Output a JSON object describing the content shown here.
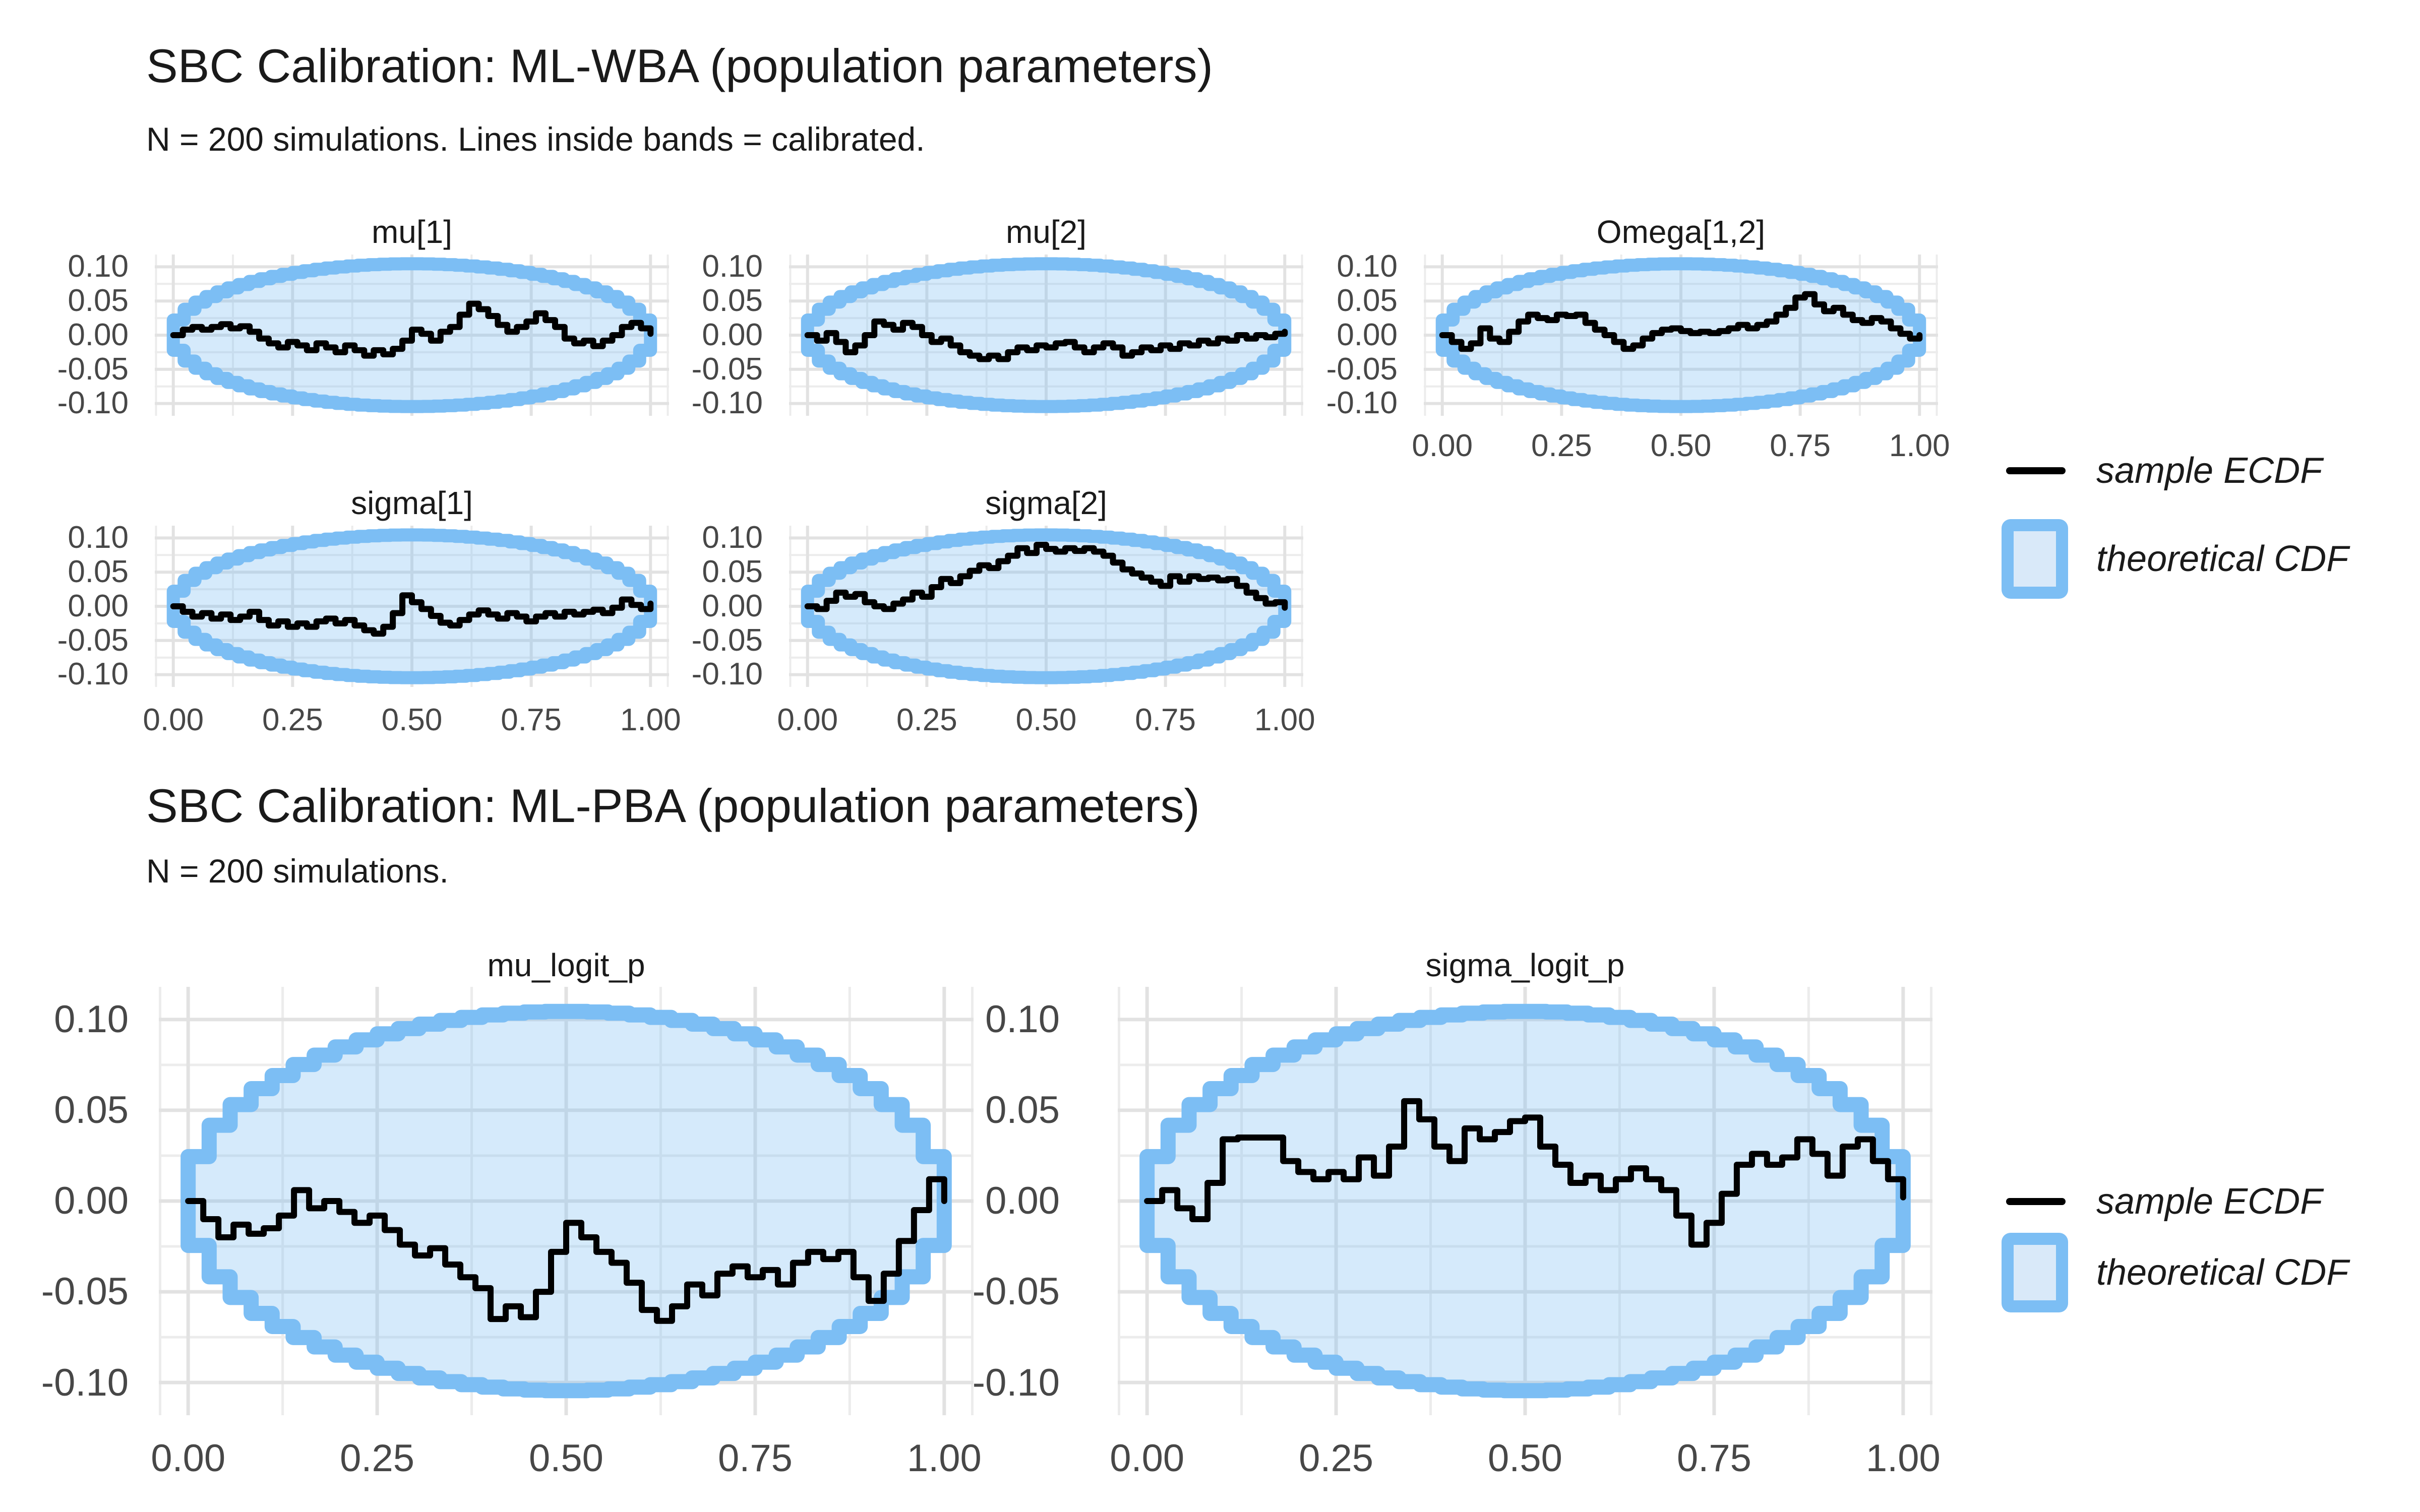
{
  "page": {
    "background": "#FFFFFF",
    "kind": "SBC calibration ECDF-difference plots"
  },
  "figures": [
    {
      "title": "SBC Calibration: ML-WBA (population parameters)",
      "subtitle": "N = 200 simulations. Lines inside bands = calibrated.",
      "n_simulations": 200
    },
    {
      "title": "SBC Calibration: ML-PBA (population parameters)",
      "subtitle": "N = 200 simulations.",
      "n_simulations": 200
    }
  ],
  "legend": {
    "line_label": "sample ECDF",
    "band_label": "theoretical CDF"
  },
  "colors": {
    "ecdf_line": "#000000",
    "band_border": "#7CBEF4",
    "band_fill": "rgba(124,190,244,0.32)",
    "grid_major": "#E2E2E2",
    "grid_minor": "#ECECEC",
    "tick_text": "#474747",
    "title_text": "#1A1A1A"
  },
  "axes": {
    "x_tick_labels": [
      "0.00",
      "0.25",
      "0.50",
      "0.75",
      "1.00"
    ],
    "x_tick_values": [
      0,
      0.25,
      0.5,
      0.75,
      1
    ],
    "x_minor_values": [
      0.125,
      0.375,
      0.625,
      0.875
    ],
    "y_tick_labels": [
      "0.10",
      "0.05",
      "0.00",
      "-0.05",
      "-0.10"
    ],
    "y_tick_values": [
      0.1,
      0.05,
      0.0,
      -0.05,
      -0.1
    ],
    "y_minor_values": [
      0.075,
      0.025,
      -0.025,
      -0.075
    ],
    "x_range": [
      0,
      1
    ],
    "y_range": [
      -0.118,
      0.118
    ],
    "grid": true
  },
  "chart_data": {
    "type": "line",
    "subtype": "sbc-ecdf-difference",
    "description": "Sample ECDF minus uniform CDF (stepped black line) per parameter, with stepped elliptical 95% theoretical CDF band centered at 0.",
    "x_sample_step": 0.02,
    "band": {
      "max_half_height": 0.1045,
      "shape": "stepped ellipse, y = ±2·0.1045·sqrt(t(1−t)) over t in [0,1]"
    },
    "panels": [
      {
        "id": "mu1",
        "title": "mu[1]",
        "figure": 0,
        "x_axis_labels": false,
        "ecdf_diff": [
          0.0,
          0.008,
          0.012,
          0.008,
          0.012,
          0.016,
          0.01,
          0.013,
          0.005,
          -0.005,
          -0.012,
          -0.018,
          -0.01,
          -0.015,
          -0.022,
          -0.012,
          -0.018,
          -0.025,
          -0.015,
          -0.022,
          -0.03,
          -0.022,
          -0.028,
          -0.02,
          -0.008,
          0.008,
          0.002,
          -0.008,
          0.005,
          0.012,
          0.03,
          0.046,
          0.038,
          0.028,
          0.015,
          0.005,
          0.012,
          0.02,
          0.032,
          0.022,
          0.012,
          -0.005,
          -0.012,
          -0.008,
          -0.016,
          -0.008,
          0.0,
          0.012,
          0.018,
          0.01,
          0.002
        ]
      },
      {
        "id": "mu2",
        "title": "mu[2]",
        "figure": 0,
        "x_axis_labels": false,
        "ecdf_diff": [
          0.0,
          -0.008,
          0.003,
          -0.01,
          -0.025,
          -0.015,
          0.0,
          0.02,
          0.015,
          0.008,
          0.018,
          0.012,
          0.0,
          -0.01,
          -0.005,
          -0.015,
          -0.025,
          -0.03,
          -0.035,
          -0.03,
          -0.035,
          -0.025,
          -0.018,
          -0.022,
          -0.015,
          -0.018,
          -0.012,
          -0.01,
          -0.018,
          -0.025,
          -0.018,
          -0.012,
          -0.018,
          -0.03,
          -0.025,
          -0.018,
          -0.022,
          -0.015,
          -0.02,
          -0.012,
          -0.015,
          -0.008,
          -0.012,
          -0.005,
          -0.008,
          0.0,
          -0.005,
          0.0,
          -0.003,
          0.002,
          0.005
        ]
      },
      {
        "id": "omega12",
        "title": "Omega[1,2]",
        "figure": 0,
        "x_axis_labels": true,
        "ecdf_diff": [
          0.0,
          -0.01,
          -0.02,
          -0.012,
          0.01,
          -0.005,
          -0.01,
          0.005,
          0.02,
          0.03,
          0.025,
          0.022,
          0.03,
          0.028,
          0.03,
          0.018,
          0.008,
          0.0,
          -0.01,
          -0.02,
          -0.015,
          -0.005,
          0.003,
          0.008,
          0.01,
          0.006,
          0.003,
          0.005,
          0.003,
          0.006,
          0.01,
          0.015,
          0.01,
          0.015,
          0.02,
          0.03,
          0.04,
          0.055,
          0.06,
          0.045,
          0.035,
          0.04,
          0.03,
          0.022,
          0.018,
          0.025,
          0.02,
          0.01,
          0.002,
          -0.005,
          0.0
        ]
      },
      {
        "id": "sigma1",
        "title": "sigma[1]",
        "figure": 0,
        "x_axis_labels": true,
        "ecdf_diff": [
          0.0,
          -0.008,
          -0.015,
          -0.01,
          -0.018,
          -0.012,
          -0.02,
          -0.015,
          -0.008,
          -0.02,
          -0.028,
          -0.022,
          -0.03,
          -0.025,
          -0.03,
          -0.022,
          -0.018,
          -0.025,
          -0.02,
          -0.028,
          -0.035,
          -0.04,
          -0.03,
          -0.01,
          0.016,
          0.006,
          -0.004,
          -0.014,
          -0.024,
          -0.028,
          -0.02,
          -0.012,
          -0.006,
          -0.012,
          -0.018,
          -0.01,
          -0.015,
          -0.022,
          -0.015,
          -0.01,
          -0.015,
          -0.008,
          -0.012,
          -0.008,
          -0.005,
          -0.01,
          -0.002,
          0.01,
          0.002,
          -0.004,
          0.004
        ]
      },
      {
        "id": "sigma2",
        "title": "sigma[2]",
        "figure": 0,
        "x_axis_labels": true,
        "ecdf_diff": [
          0.0,
          -0.004,
          0.008,
          0.02,
          0.014,
          0.018,
          0.006,
          0.0,
          -0.004,
          0.004,
          0.01,
          0.02,
          0.014,
          0.028,
          0.04,
          0.034,
          0.044,
          0.052,
          0.06,
          0.056,
          0.066,
          0.074,
          0.085,
          0.078,
          0.09,
          0.084,
          0.08,
          0.085,
          0.081,
          0.085,
          0.08,
          0.074,
          0.064,
          0.054,
          0.048,
          0.042,
          0.036,
          0.03,
          0.044,
          0.036,
          0.044,
          0.04,
          0.042,
          0.038,
          0.04,
          0.03,
          0.02,
          0.012,
          0.004,
          0.006,
          -0.002
        ]
      },
      {
        "id": "mu_logit_p",
        "title": "mu_logit_p",
        "figure": 1,
        "x_axis_labels": true,
        "ecdf_diff": [
          0.0,
          -0.01,
          -0.02,
          -0.013,
          -0.018,
          -0.015,
          -0.008,
          0.006,
          -0.004,
          0.0,
          -0.006,
          -0.012,
          -0.008,
          -0.016,
          -0.024,
          -0.03,
          -0.026,
          -0.035,
          -0.042,
          -0.048,
          -0.065,
          -0.058,
          -0.064,
          -0.05,
          -0.028,
          -0.012,
          -0.02,
          -0.028,
          -0.034,
          -0.045,
          -0.06,
          -0.066,
          -0.058,
          -0.046,
          -0.052,
          -0.04,
          -0.036,
          -0.042,
          -0.038,
          -0.046,
          -0.034,
          -0.028,
          -0.032,
          -0.028,
          -0.042,
          -0.055,
          -0.04,
          -0.022,
          -0.005,
          0.012,
          0.0
        ]
      },
      {
        "id": "sigma_logit_p",
        "title": "sigma_logit_p",
        "figure": 1,
        "x_axis_labels": true,
        "ecdf_diff": [
          0.0,
          0.006,
          -0.004,
          -0.01,
          0.01,
          0.034,
          0.035,
          0.035,
          0.035,
          0.022,
          0.016,
          0.012,
          0.016,
          0.012,
          0.024,
          0.014,
          0.03,
          0.055,
          0.045,
          0.03,
          0.022,
          0.04,
          0.034,
          0.038,
          0.044,
          0.046,
          0.03,
          0.02,
          0.01,
          0.014,
          0.006,
          0.012,
          0.018,
          0.012,
          0.006,
          -0.008,
          -0.024,
          -0.012,
          0.004,
          0.02,
          0.026,
          0.02,
          0.024,
          0.034,
          0.026,
          0.014,
          0.03,
          0.034,
          0.022,
          0.012,
          0.002
        ]
      }
    ]
  }
}
